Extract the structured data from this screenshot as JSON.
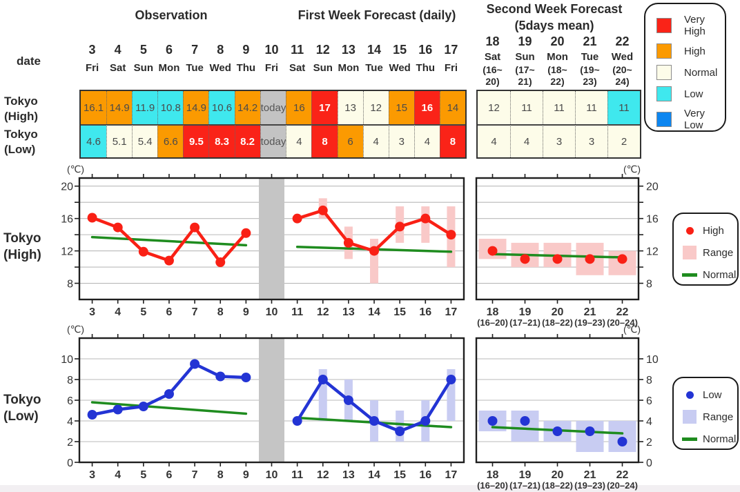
{
  "header": {
    "date_label": "date",
    "observation_title": "Observation",
    "first_week_title": "First Week Forecast (daily)",
    "second_week_title_1": "Second Week Forecast",
    "second_week_title_2": "(5days mean)"
  },
  "category_legend": [
    {
      "label": "Very High",
      "color": "#fa2318"
    },
    {
      "label": "High",
      "color": "#fb9a01"
    },
    {
      "label": "Normal",
      "color": "#fdfce9"
    },
    {
      "label": "Low",
      "color": "#3fe8ee"
    },
    {
      "label": "Very Low",
      "color": "#0d86f0"
    }
  ],
  "category_colors": {
    "very_high": "#fa2318",
    "high": "#fb9a01",
    "normal": "#fdfce9",
    "low": "#3fe8ee",
    "very_low": "#0d86f0",
    "today": "#c3c3c3"
  },
  "table": {
    "row_labels": [
      {
        "l1": "Tokyo",
        "l2": "(High)"
      },
      {
        "l1": "Tokyo",
        "l2": "(Low)"
      }
    ],
    "main_days": [
      {
        "num": "3",
        "dow": "Fri"
      },
      {
        "num": "4",
        "dow": "Sat"
      },
      {
        "num": "5",
        "dow": "Sun"
      },
      {
        "num": "6",
        "dow": "Mon"
      },
      {
        "num": "7",
        "dow": "Tue"
      },
      {
        "num": "8",
        "dow": "Wed"
      },
      {
        "num": "9",
        "dow": "Thu"
      },
      {
        "num": "10",
        "dow": "Fri"
      },
      {
        "num": "11",
        "dow": "Sat"
      },
      {
        "num": "12",
        "dow": "Sun"
      },
      {
        "num": "13",
        "dow": "Mon"
      },
      {
        "num": "14",
        "dow": "Tue"
      },
      {
        "num": "15",
        "dow": "Wed"
      },
      {
        "num": "16",
        "dow": "Thu"
      },
      {
        "num": "17",
        "dow": "Fri"
      }
    ],
    "second_days": [
      {
        "num": "18",
        "dow": "Sat",
        "r1": "(16~",
        "r2": "20)"
      },
      {
        "num": "19",
        "dow": "Sun",
        "r1": "(17~",
        "r2": "21)"
      },
      {
        "num": "20",
        "dow": "Mon",
        "r1": "(18~",
        "r2": "22)"
      },
      {
        "num": "21",
        "dow": "Tue",
        "r1": "(19~",
        "r2": "23)"
      },
      {
        "num": "22",
        "dow": "Wed",
        "r1": "(20~",
        "r2": "24)"
      }
    ],
    "high_main": [
      {
        "v": "16.1",
        "cat": "high"
      },
      {
        "v": "14.9",
        "cat": "high"
      },
      {
        "v": "11.9",
        "cat": "low"
      },
      {
        "v": "10.8",
        "cat": "low"
      },
      {
        "v": "14.9",
        "cat": "high"
      },
      {
        "v": "10.6",
        "cat": "low"
      },
      {
        "v": "14.2",
        "cat": "high"
      },
      {
        "v": "today",
        "cat": "today"
      },
      {
        "v": "16",
        "cat": "high"
      },
      {
        "v": "17",
        "cat": "very_high"
      },
      {
        "v": "13",
        "cat": "normal"
      },
      {
        "v": "12",
        "cat": "normal"
      },
      {
        "v": "15",
        "cat": "high"
      },
      {
        "v": "16",
        "cat": "very_high"
      },
      {
        "v": "14",
        "cat": "high"
      }
    ],
    "low_main": [
      {
        "v": "4.6",
        "cat": "low"
      },
      {
        "v": "5.1",
        "cat": "normal"
      },
      {
        "v": "5.4",
        "cat": "normal"
      },
      {
        "v": "6.6",
        "cat": "high"
      },
      {
        "v": "9.5",
        "cat": "very_high"
      },
      {
        "v": "8.3",
        "cat": "very_high"
      },
      {
        "v": "8.2",
        "cat": "very_high"
      },
      {
        "v": "today",
        "cat": "today"
      },
      {
        "v": "4",
        "cat": "normal"
      },
      {
        "v": "8",
        "cat": "very_high"
      },
      {
        "v": "6",
        "cat": "high"
      },
      {
        "v": "4",
        "cat": "normal"
      },
      {
        "v": "3",
        "cat": "normal"
      },
      {
        "v": "4",
        "cat": "normal"
      },
      {
        "v": "8",
        "cat": "very_high"
      }
    ],
    "high_second": [
      {
        "v": "12",
        "cat": "normal"
      },
      {
        "v": "11",
        "cat": "normal"
      },
      {
        "v": "11",
        "cat": "normal"
      },
      {
        "v": "11",
        "cat": "normal"
      },
      {
        "v": "11",
        "cat": "low"
      }
    ],
    "low_second": [
      {
        "v": "4",
        "cat": "normal"
      },
      {
        "v": "4",
        "cat": "normal"
      },
      {
        "v": "3",
        "cat": "normal"
      },
      {
        "v": "3",
        "cat": "normal"
      },
      {
        "v": "2",
        "cat": "normal"
      }
    ]
  },
  "chart_data": [
    {
      "type": "line",
      "title_lines": [
        "Tokyo",
        "(High)"
      ],
      "unit": "(℃)",
      "ylim": [
        6,
        21
      ],
      "yticks": [
        8,
        12,
        16,
        20
      ],
      "gridlines": [
        8,
        10,
        12,
        14,
        16,
        18,
        20
      ],
      "today_band_x": 10,
      "point_color": "#f92015",
      "range_color": "#f9c9c8",
      "normal_color": "#1f8c1f",
      "x_labels_main": [
        "3",
        "4",
        "5",
        "6",
        "7",
        "8",
        "9",
        "10",
        "11",
        "12",
        "13",
        "14",
        "15",
        "16",
        "17"
      ],
      "observation": {
        "x": [
          3,
          4,
          5,
          6,
          7,
          8,
          9
        ],
        "values": [
          16.1,
          14.9,
          11.9,
          10.8,
          14.9,
          10.6,
          14.2
        ]
      },
      "forecast": {
        "x": [
          11,
          12,
          13,
          14,
          15,
          16,
          17
        ],
        "values": [
          16,
          17,
          13,
          12,
          15,
          16,
          14
        ],
        "ranges": [
          null,
          [
            16,
            18.5
          ],
          [
            11,
            15
          ],
          [
            8,
            13.5
          ],
          [
            13,
            17.5
          ],
          [
            13,
            17.5
          ],
          [
            10,
            17.5
          ]
        ]
      },
      "second_week": {
        "labels": [
          "18",
          "19",
          "20",
          "21",
          "22"
        ],
        "sub_labels": [
          "(16–20)",
          "(17–21)",
          "(18–22)",
          "(19–23)",
          "(20–24)"
        ],
        "values": [
          12,
          11,
          11,
          11,
          11
        ],
        "ranges": [
          [
            11,
            13.5
          ],
          [
            10,
            13
          ],
          [
            10,
            13
          ],
          [
            9,
            13
          ],
          [
            9,
            12
          ]
        ]
      },
      "normal_lines": [
        {
          "x": [
            3,
            9
          ],
          "y": [
            13.7,
            12.7
          ]
        },
        {
          "x": [
            11,
            17
          ],
          "y": [
            12.5,
            11.9
          ]
        },
        {
          "x": [
            18,
            22
          ],
          "y": [
            11.6,
            11.2
          ]
        }
      ],
      "legend": [
        {
          "marker": "dot",
          "label": "High"
        },
        {
          "marker": "box",
          "label": "Range"
        },
        {
          "marker": "line",
          "label": "Normal"
        }
      ]
    },
    {
      "type": "line",
      "title_lines": [
        "Tokyo",
        "(Low)"
      ],
      "unit": "(℃)",
      "ylim": [
        0,
        12
      ],
      "yticks": [
        0,
        2,
        4,
        6,
        8,
        10
      ],
      "gridlines": [
        2,
        4,
        6,
        8,
        10
      ],
      "today_band_x": 10,
      "point_color": "#2334d4",
      "range_color": "#c8ccf2",
      "normal_color": "#1f8c1f",
      "x_labels_main": [
        "3",
        "4",
        "5",
        "6",
        "7",
        "8",
        "9",
        "10",
        "11",
        "12",
        "13",
        "14",
        "15",
        "16",
        "17"
      ],
      "observation": {
        "x": [
          3,
          4,
          5,
          6,
          7,
          8,
          9
        ],
        "values": [
          4.6,
          5.1,
          5.4,
          6.6,
          9.5,
          8.3,
          8.2
        ]
      },
      "forecast": {
        "x": [
          11,
          12,
          13,
          14,
          15,
          16,
          17
        ],
        "values": [
          4,
          8,
          6,
          4,
          3,
          4,
          8
        ],
        "ranges": [
          null,
          [
            4,
            9
          ],
          [
            4,
            8
          ],
          [
            2,
            6
          ],
          [
            2,
            5
          ],
          [
            2,
            6
          ],
          [
            4,
            9
          ]
        ]
      },
      "second_week": {
        "labels": [
          "18",
          "19",
          "20",
          "21",
          "22"
        ],
        "sub_labels": [
          "(16–20)",
          "(17–21)",
          "(18–22)",
          "(19–23)",
          "(20–24)"
        ],
        "values": [
          4,
          4,
          3,
          3,
          2
        ],
        "ranges": [
          [
            3,
            5
          ],
          [
            2,
            5
          ],
          [
            2,
            4
          ],
          [
            1,
            4
          ],
          [
            1,
            4
          ]
        ]
      },
      "normal_lines": [
        {
          "x": [
            3,
            9
          ],
          "y": [
            5.8,
            4.7
          ]
        },
        {
          "x": [
            11,
            17
          ],
          "y": [
            4.3,
            3.4
          ]
        },
        {
          "x": [
            18,
            22
          ],
          "y": [
            3.4,
            2.8
          ]
        }
      ],
      "legend": [
        {
          "marker": "dot",
          "label": "Low"
        },
        {
          "marker": "box",
          "label": "Range"
        },
        {
          "marker": "line",
          "label": "Normal"
        }
      ]
    }
  ]
}
